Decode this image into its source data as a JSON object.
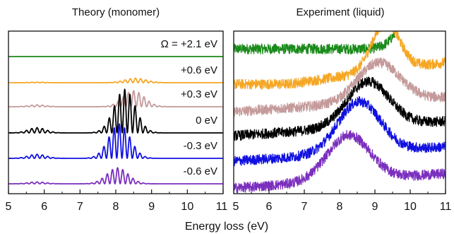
{
  "chart_data": [
    {
      "type": "line",
      "title": "Theory (monomer)",
      "xlabel": "Energy loss (eV)",
      "ylabel": "",
      "xlim": [
        5,
        11
      ],
      "x_ticks": [
        "5",
        "6",
        "7",
        "8",
        "9",
        "10",
        "11"
      ],
      "grid": false,
      "series": [
        {
          "name": "Ω = +2.1 eV",
          "color": "#1a8a1a",
          "peak_eV": 8.5,
          "peak_height": 0.0
        },
        {
          "name": "+0.6 eV",
          "color": "#f5a623",
          "peak_eV": 8.55,
          "peak_height": 0.1
        },
        {
          "name": "+0.3 eV",
          "color": "#c49a9a",
          "peak_eV": 8.5,
          "peak_height": 0.35
        },
        {
          "name": "0 eV",
          "color": "#000000",
          "peak_eV": 8.25,
          "peak_height": 0.95
        },
        {
          "name": "-0.3 eV",
          "color": "#1010e0",
          "peak_eV": 8.1,
          "peak_height": 0.75
        },
        {
          "name": "-0.6 eV",
          "color": "#7b2fbe",
          "peak_eV": 8.05,
          "peak_height": 0.35
        }
      ]
    },
    {
      "type": "line",
      "title": "Experiment (liquid)",
      "xlabel": "Energy loss (eV)",
      "ylabel": "",
      "xlim": [
        5,
        11
      ],
      "x_ticks": [
        "5",
        "6",
        "7",
        "8",
        "9",
        "10",
        "11"
      ],
      "grid": false,
      "series": [
        {
          "name": "Ω = +2.1 eV",
          "color": "#1a8a1a",
          "peak_eV": 10.5,
          "peak_height": 1.2
        },
        {
          "name": "+0.6 eV",
          "color": "#f5a623",
          "peak_eV": 9.3,
          "peak_height": 0.8
        },
        {
          "name": "+0.3 eV",
          "color": "#c49a9a",
          "peak_eV": 9.1,
          "peak_height": 0.65
        },
        {
          "name": "0 eV",
          "color": "#000000",
          "peak_eV": 8.8,
          "peak_height": 0.75
        },
        {
          "name": "-0.3 eV",
          "color": "#1010e0",
          "peak_eV": 8.55,
          "peak_height": 0.85
        },
        {
          "name": "-0.6 eV",
          "color": "#7b2fbe",
          "peak_eV": 8.25,
          "peak_height": 0.75
        }
      ]
    }
  ]
}
